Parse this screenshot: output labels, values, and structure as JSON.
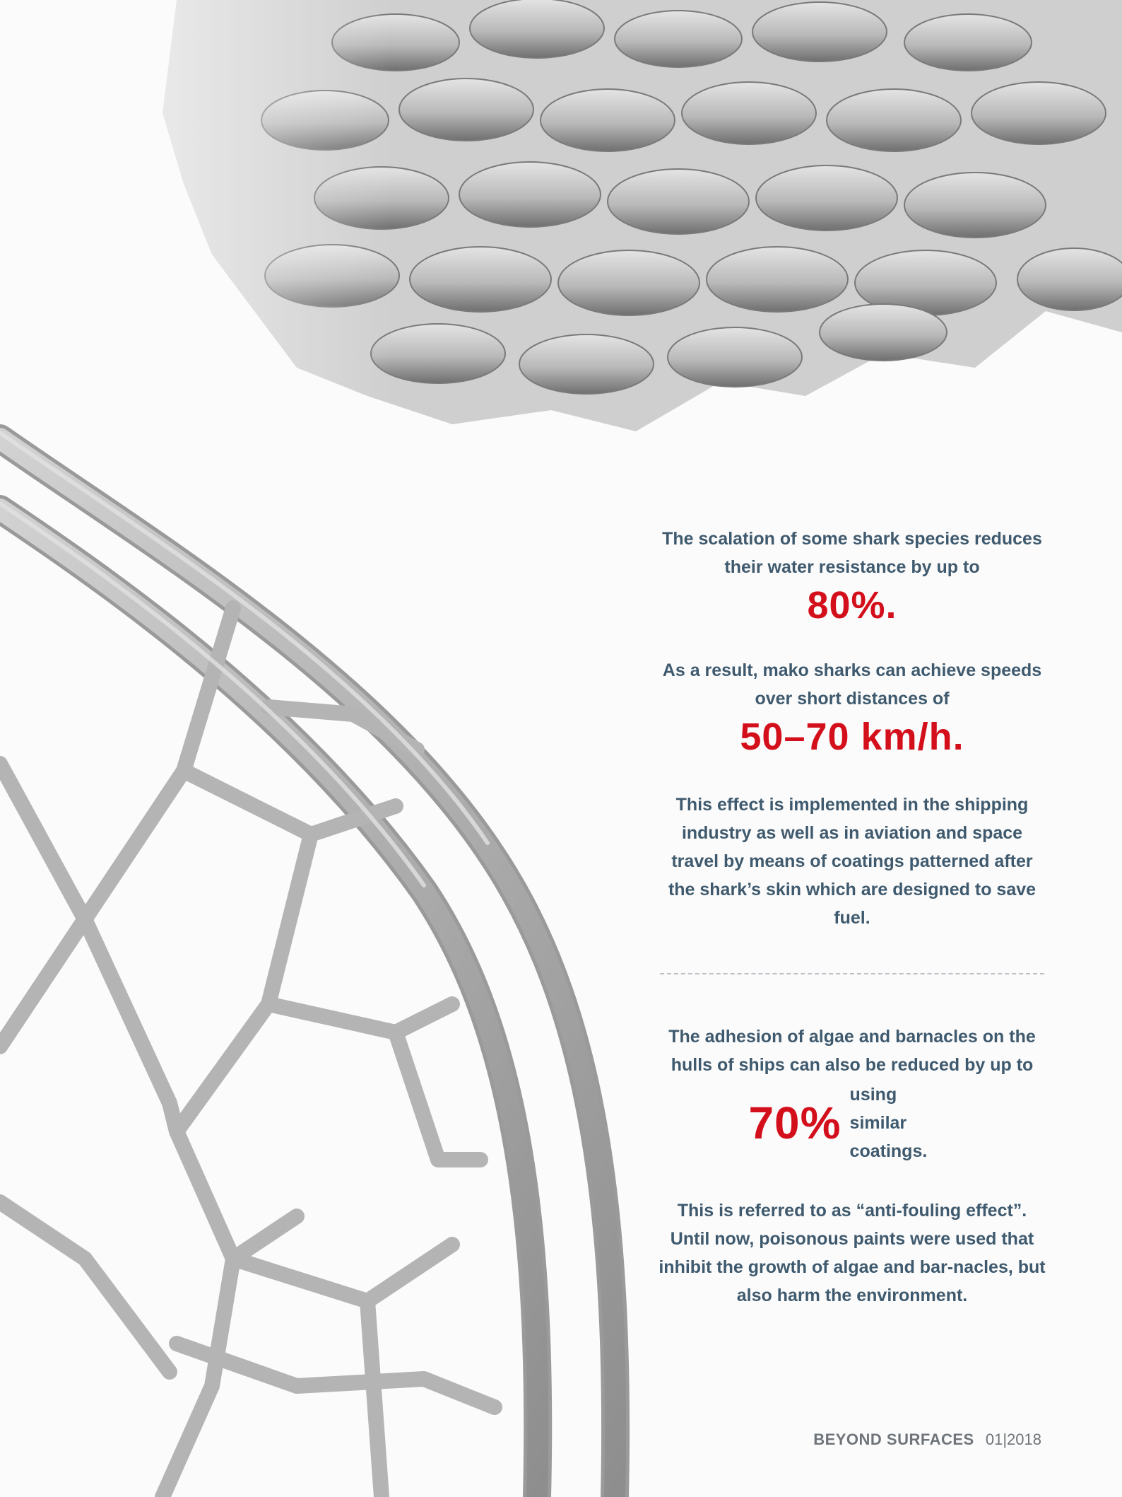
{
  "paragraphs": {
    "p1": "The scalation of some shark species reduces their water resistance by up to",
    "stat1": "80%.",
    "p2": "As a result, mako sharks can achieve speeds over short distances of",
    "stat2": "50–70 km/h.",
    "p3": "This effect is implemented in the shipping industry as well as in aviation and space travel by means of coatings patterned after the shark’s skin which are designed to save fuel.",
    "p4": "The adhesion of algae and barnacles on the hulls of ships can also be reduced by up to",
    "stat3": "70%",
    "stat3_suffix": "using similar coatings.",
    "p5": "This is referred to as “anti-fouling effect”. Until now, poisonous paints were used that inhibit the growth of algae and bar-nacles, but also harm the environment."
  },
  "footer": {
    "brand": "BEYOND SURFACES",
    "issue": "01|2018"
  },
  "colors": {
    "accent_red": "#d40f1c",
    "text_slate": "#3f5a6e"
  }
}
